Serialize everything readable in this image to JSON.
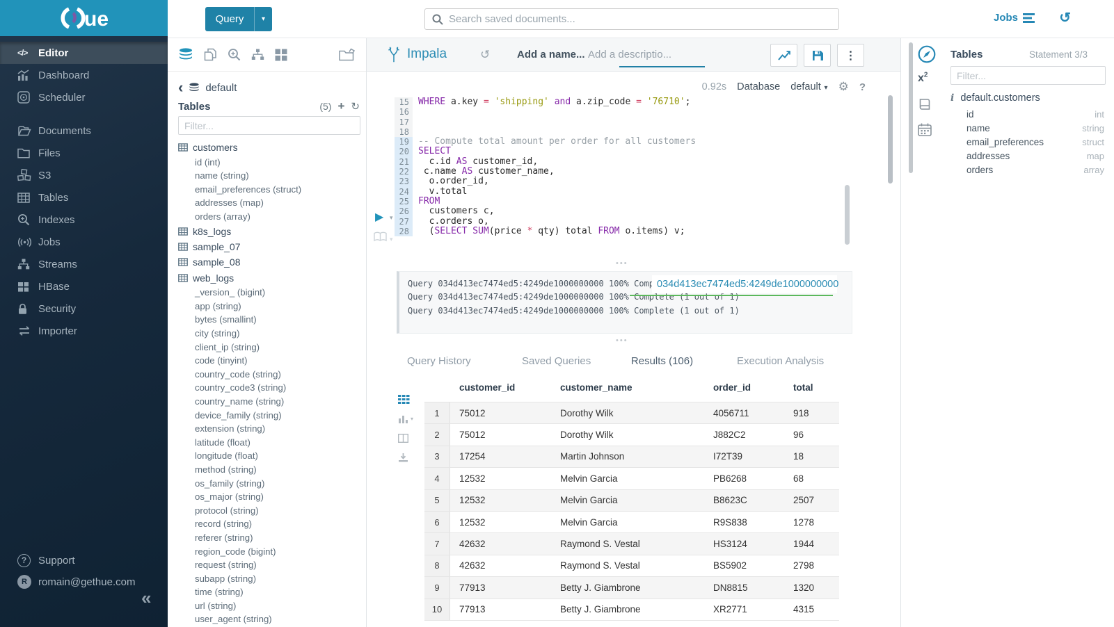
{
  "colors": {
    "brand_blue": "#2193ba",
    "accent_blue": "#1f82a7",
    "link_blue": "#2b8cb4",
    "green_underline": "#5cb85c"
  },
  "sidebar": {
    "logo_text": "ue",
    "items": [
      {
        "label": "Editor",
        "icon": "code-icon",
        "active": true,
        "gap_before": false
      },
      {
        "label": "Dashboard",
        "icon": "dashboard-icon",
        "active": false,
        "gap_before": false
      },
      {
        "label": "Scheduler",
        "icon": "scheduler-icon",
        "active": false,
        "gap_before": false
      },
      {
        "label": "Documents",
        "icon": "documents-icon",
        "active": false,
        "gap_before": true
      },
      {
        "label": "Files",
        "icon": "files-icon",
        "active": false,
        "gap_before": false
      },
      {
        "label": "S3",
        "icon": "s3-icon",
        "active": false,
        "gap_before": false
      },
      {
        "label": "Tables",
        "icon": "tables-icon",
        "active": false,
        "gap_before": false
      },
      {
        "label": "Indexes",
        "icon": "indexes-icon",
        "active": false,
        "gap_before": false
      },
      {
        "label": "Jobs",
        "icon": "jobs-icon",
        "active": false,
        "gap_before": false
      },
      {
        "label": "Streams",
        "icon": "streams-icon",
        "active": false,
        "gap_before": false
      },
      {
        "label": "HBase",
        "icon": "hbase-icon",
        "active": false,
        "gap_before": false
      },
      {
        "label": "Security",
        "icon": "security-icon",
        "active": false,
        "gap_before": false
      },
      {
        "label": "Importer",
        "icon": "importer-icon",
        "active": false,
        "gap_before": false
      }
    ],
    "support_label": "Support",
    "user_email": "romain@gethue.com",
    "collapse_glyph": "«"
  },
  "topbar": {
    "query_button_label": "Query",
    "search_placeholder": "Search saved documents...",
    "jobs_label": "Jobs"
  },
  "left_assist": {
    "breadcrumb_db": "default",
    "tables_label": "Tables",
    "tables_count": "(5)",
    "filter_placeholder": "Filter...",
    "tables": [
      {
        "name": "customers",
        "columns": [
          "id (int)",
          "name (string)",
          "email_preferences (struct)",
          "addresses (map)",
          "orders (array)"
        ]
      },
      {
        "name": "k8s_logs",
        "columns": []
      },
      {
        "name": "sample_07",
        "columns": []
      },
      {
        "name": "sample_08",
        "columns": []
      },
      {
        "name": "web_logs",
        "columns": [
          "_version_ (bigint)",
          "app (string)",
          "bytes (smallint)",
          "city (string)",
          "client_ip (string)",
          "code (tinyint)",
          "country_code (string)",
          "country_code3 (string)",
          "country_name (string)",
          "device_family (string)",
          "extension (string)",
          "latitude (float)",
          "longitude (float)",
          "method (string)",
          "os_family (string)",
          "os_major (string)",
          "protocol (string)",
          "record (string)",
          "referer (string)",
          "region_code (bigint)",
          "request (string)",
          "subapp (string)",
          "time (string)",
          "url (string)",
          "user_agent (string)"
        ]
      }
    ]
  },
  "editor": {
    "engine_label": "Impala",
    "name_placeholder": "Add a name...",
    "description_placeholder": "Add a descriptio...",
    "exec_time": "0.92s",
    "database_label": "Database",
    "database_value": "default",
    "code_lines": [
      {
        "n": 15,
        "hl": false,
        "segments": [
          [
            "kw",
            "WHERE"
          ],
          [
            "pl",
            " a.key "
          ],
          [
            "op",
            "="
          ],
          [
            "pl",
            " "
          ],
          [
            "str",
            "'shipping'"
          ],
          [
            "pl",
            " "
          ],
          [
            "kw",
            "and"
          ],
          [
            "pl",
            " a.zip_code "
          ],
          [
            "op",
            "="
          ],
          [
            "pl",
            " "
          ],
          [
            "str",
            "'76710'"
          ],
          [
            "pl",
            ";"
          ]
        ]
      },
      {
        "n": 16,
        "hl": false,
        "segments": []
      },
      {
        "n": 17,
        "hl": false,
        "segments": []
      },
      {
        "n": 18,
        "hl": false,
        "segments": []
      },
      {
        "n": 19,
        "hl": true,
        "segments": [
          [
            "com",
            "-- Compute total amount per order for all customers"
          ]
        ]
      },
      {
        "n": 20,
        "hl": true,
        "segments": [
          [
            "kw",
            "SELECT"
          ]
        ]
      },
      {
        "n": 21,
        "hl": true,
        "segments": [
          [
            "pl",
            "  c.id "
          ],
          [
            "kw",
            "AS"
          ],
          [
            "pl",
            " customer_id,"
          ]
        ]
      },
      {
        "n": 22,
        "hl": true,
        "segments": [
          [
            "pl",
            " c.name "
          ],
          [
            "kw",
            "AS"
          ],
          [
            "pl",
            " customer_name,"
          ]
        ]
      },
      {
        "n": 23,
        "hl": true,
        "segments": [
          [
            "pl",
            "  o.order_id,"
          ]
        ]
      },
      {
        "n": 24,
        "hl": true,
        "segments": [
          [
            "pl",
            "  v.total"
          ]
        ]
      },
      {
        "n": 25,
        "hl": true,
        "segments": [
          [
            "kw",
            "FROM"
          ]
        ]
      },
      {
        "n": 26,
        "hl": true,
        "segments": [
          [
            "pl",
            "  customers c,"
          ]
        ]
      },
      {
        "n": 27,
        "hl": true,
        "segments": [
          [
            "pl",
            "  c.orders o,"
          ]
        ]
      },
      {
        "n": 28,
        "hl": true,
        "segments": [
          [
            "pl",
            "  ("
          ],
          [
            "kw",
            "SELECT"
          ],
          [
            "pl",
            " "
          ],
          [
            "kw",
            "SUM"
          ],
          [
            "pl",
            "(price "
          ],
          [
            "op",
            "*"
          ],
          [
            "pl",
            " qty) total "
          ],
          [
            "kw",
            "FROM"
          ],
          [
            "pl",
            " o.items) v;"
          ]
        ]
      }
    ]
  },
  "log": {
    "lines": [
      "Query 034d413ec7474ed5:4249de1000000000 100% Complete (1 out of 1)",
      "Query 034d413ec7474ed5:4249de1000000000 100% Complete (1 out of 1)",
      "Query 034d413ec7474ed5:4249de1000000000 100% Complete (1 out of 1)"
    ],
    "tooltip_text": "034d413ec7474ed5:4249de1000000000"
  },
  "result_tabs": {
    "tabs": [
      {
        "label": "Query History",
        "active": false
      },
      {
        "label": "Saved Queries",
        "active": false
      },
      {
        "label": "Results (106)",
        "active": true
      },
      {
        "label": "Execution Analysis",
        "active": false
      }
    ]
  },
  "results": {
    "columns": [
      "customer_id",
      "customer_name",
      "order_id",
      "total"
    ],
    "rows": [
      [
        "1",
        "75012",
        "Dorothy Wilk",
        "4056711",
        "918"
      ],
      [
        "2",
        "75012",
        "Dorothy Wilk",
        "J882C2",
        "96"
      ],
      [
        "3",
        "17254",
        "Martin Johnson",
        "I72T39",
        "18"
      ],
      [
        "4",
        "12532",
        "Melvin Garcia",
        "PB6268",
        "68"
      ],
      [
        "5",
        "12532",
        "Melvin Garcia",
        "B8623C",
        "2507"
      ],
      [
        "6",
        "12532",
        "Melvin Garcia",
        "R9S838",
        "1278"
      ],
      [
        "7",
        "42632",
        "Raymond S. Vestal",
        "HS3124",
        "1944"
      ],
      [
        "8",
        "42632",
        "Raymond S. Vestal",
        "BS5902",
        "2798"
      ],
      [
        "9",
        "77913",
        "Betty J. Giambrone",
        "DN8815",
        "1320"
      ],
      [
        "10",
        "77913",
        "Betty J. Giambrone",
        "XR2771",
        "4315"
      ]
    ]
  },
  "right_assist": {
    "title": "Tables",
    "statement_label": "Statement 3/3",
    "filter_placeholder": "Filter...",
    "table_name": "default.customers",
    "columns": [
      {
        "name": "id",
        "type": "int"
      },
      {
        "name": "name",
        "type": "string"
      },
      {
        "name": "email_preferences",
        "type": "struct"
      },
      {
        "name": "addresses",
        "type": "map"
      },
      {
        "name": "orders",
        "type": "array"
      }
    ]
  }
}
